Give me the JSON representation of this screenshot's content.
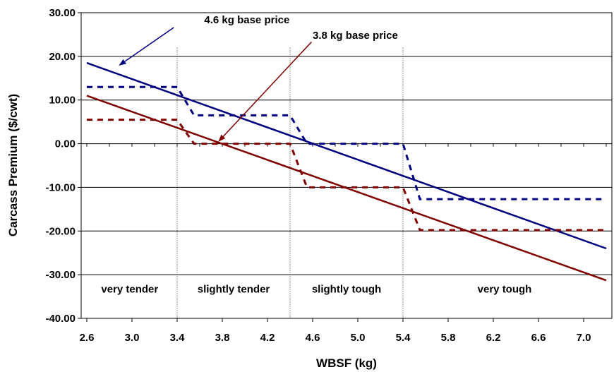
{
  "chart_data": {
    "type": "line",
    "xlabel": "WBSF (kg)",
    "ylabel": "Carcass Premium ($/cwt)",
    "xlim": [
      2.55,
      7.25
    ],
    "ylim": [
      -40,
      30
    ],
    "x_ticks": [
      "2.6",
      "3.0",
      "3.4",
      "3.8",
      "4.2",
      "4.6",
      "5.0",
      "5.4",
      "5.8",
      "6.2",
      "6.6",
      "7.0"
    ],
    "y_ticks": [
      "30.00",
      "20.00",
      "10.00",
      "0.00",
      "-10.00",
      "-20.00",
      "-30.00",
      "-40.00"
    ],
    "grid": "horizontal",
    "series": [
      {
        "style": "solid",
        "color": "#000080",
        "x": [
          2.6,
          7.2
        ],
        "y": [
          18.5,
          -24.0
        ]
      },
      {
        "style": "solid",
        "color": "#800000",
        "x": [
          2.6,
          7.2
        ],
        "y": [
          11.0,
          -31.3
        ]
      },
      {
        "style": "dashed",
        "color": "#000080",
        "x": [
          2.6,
          3.4,
          3.55,
          4.4,
          4.55,
          5.4,
          5.55,
          7.2
        ],
        "y": [
          13.0,
          13.0,
          6.5,
          6.5,
          0.0,
          0.0,
          -12.7,
          -12.7
        ]
      },
      {
        "style": "dashed",
        "color": "#800000",
        "x": [
          2.6,
          3.4,
          3.55,
          4.4,
          4.55,
          5.4,
          5.55,
          7.2
        ],
        "y": [
          5.5,
          5.5,
          0.0,
          0.0,
          -10.0,
          -10.0,
          -19.8,
          -19.8
        ]
      }
    ],
    "region_boundaries": [
      3.4,
      4.4,
      5.4
    ],
    "regions": [
      {
        "label": "very tender",
        "x": 2.98
      },
      {
        "label": "slightly tender",
        "x": 3.9
      },
      {
        "label": "slightly tough",
        "x": 4.9
      },
      {
        "label": "very tough",
        "x": 6.3
      }
    ],
    "annotations": [
      {
        "text": "4.6 kg base price",
        "color": "#000080",
        "text_x": 3.64,
        "text_y": 27.6,
        "arrow_from": [
          3.37,
          26.6
        ],
        "arrow_to": [
          2.89,
          18.0
        ]
      },
      {
        "text": "3.8 kg base price",
        "color": "#800000",
        "text_x": 4.6,
        "text_y": 24.0,
        "arrow_from": [
          4.59,
          23.3
        ],
        "arrow_to": [
          3.77,
          0.6
        ]
      }
    ]
  }
}
